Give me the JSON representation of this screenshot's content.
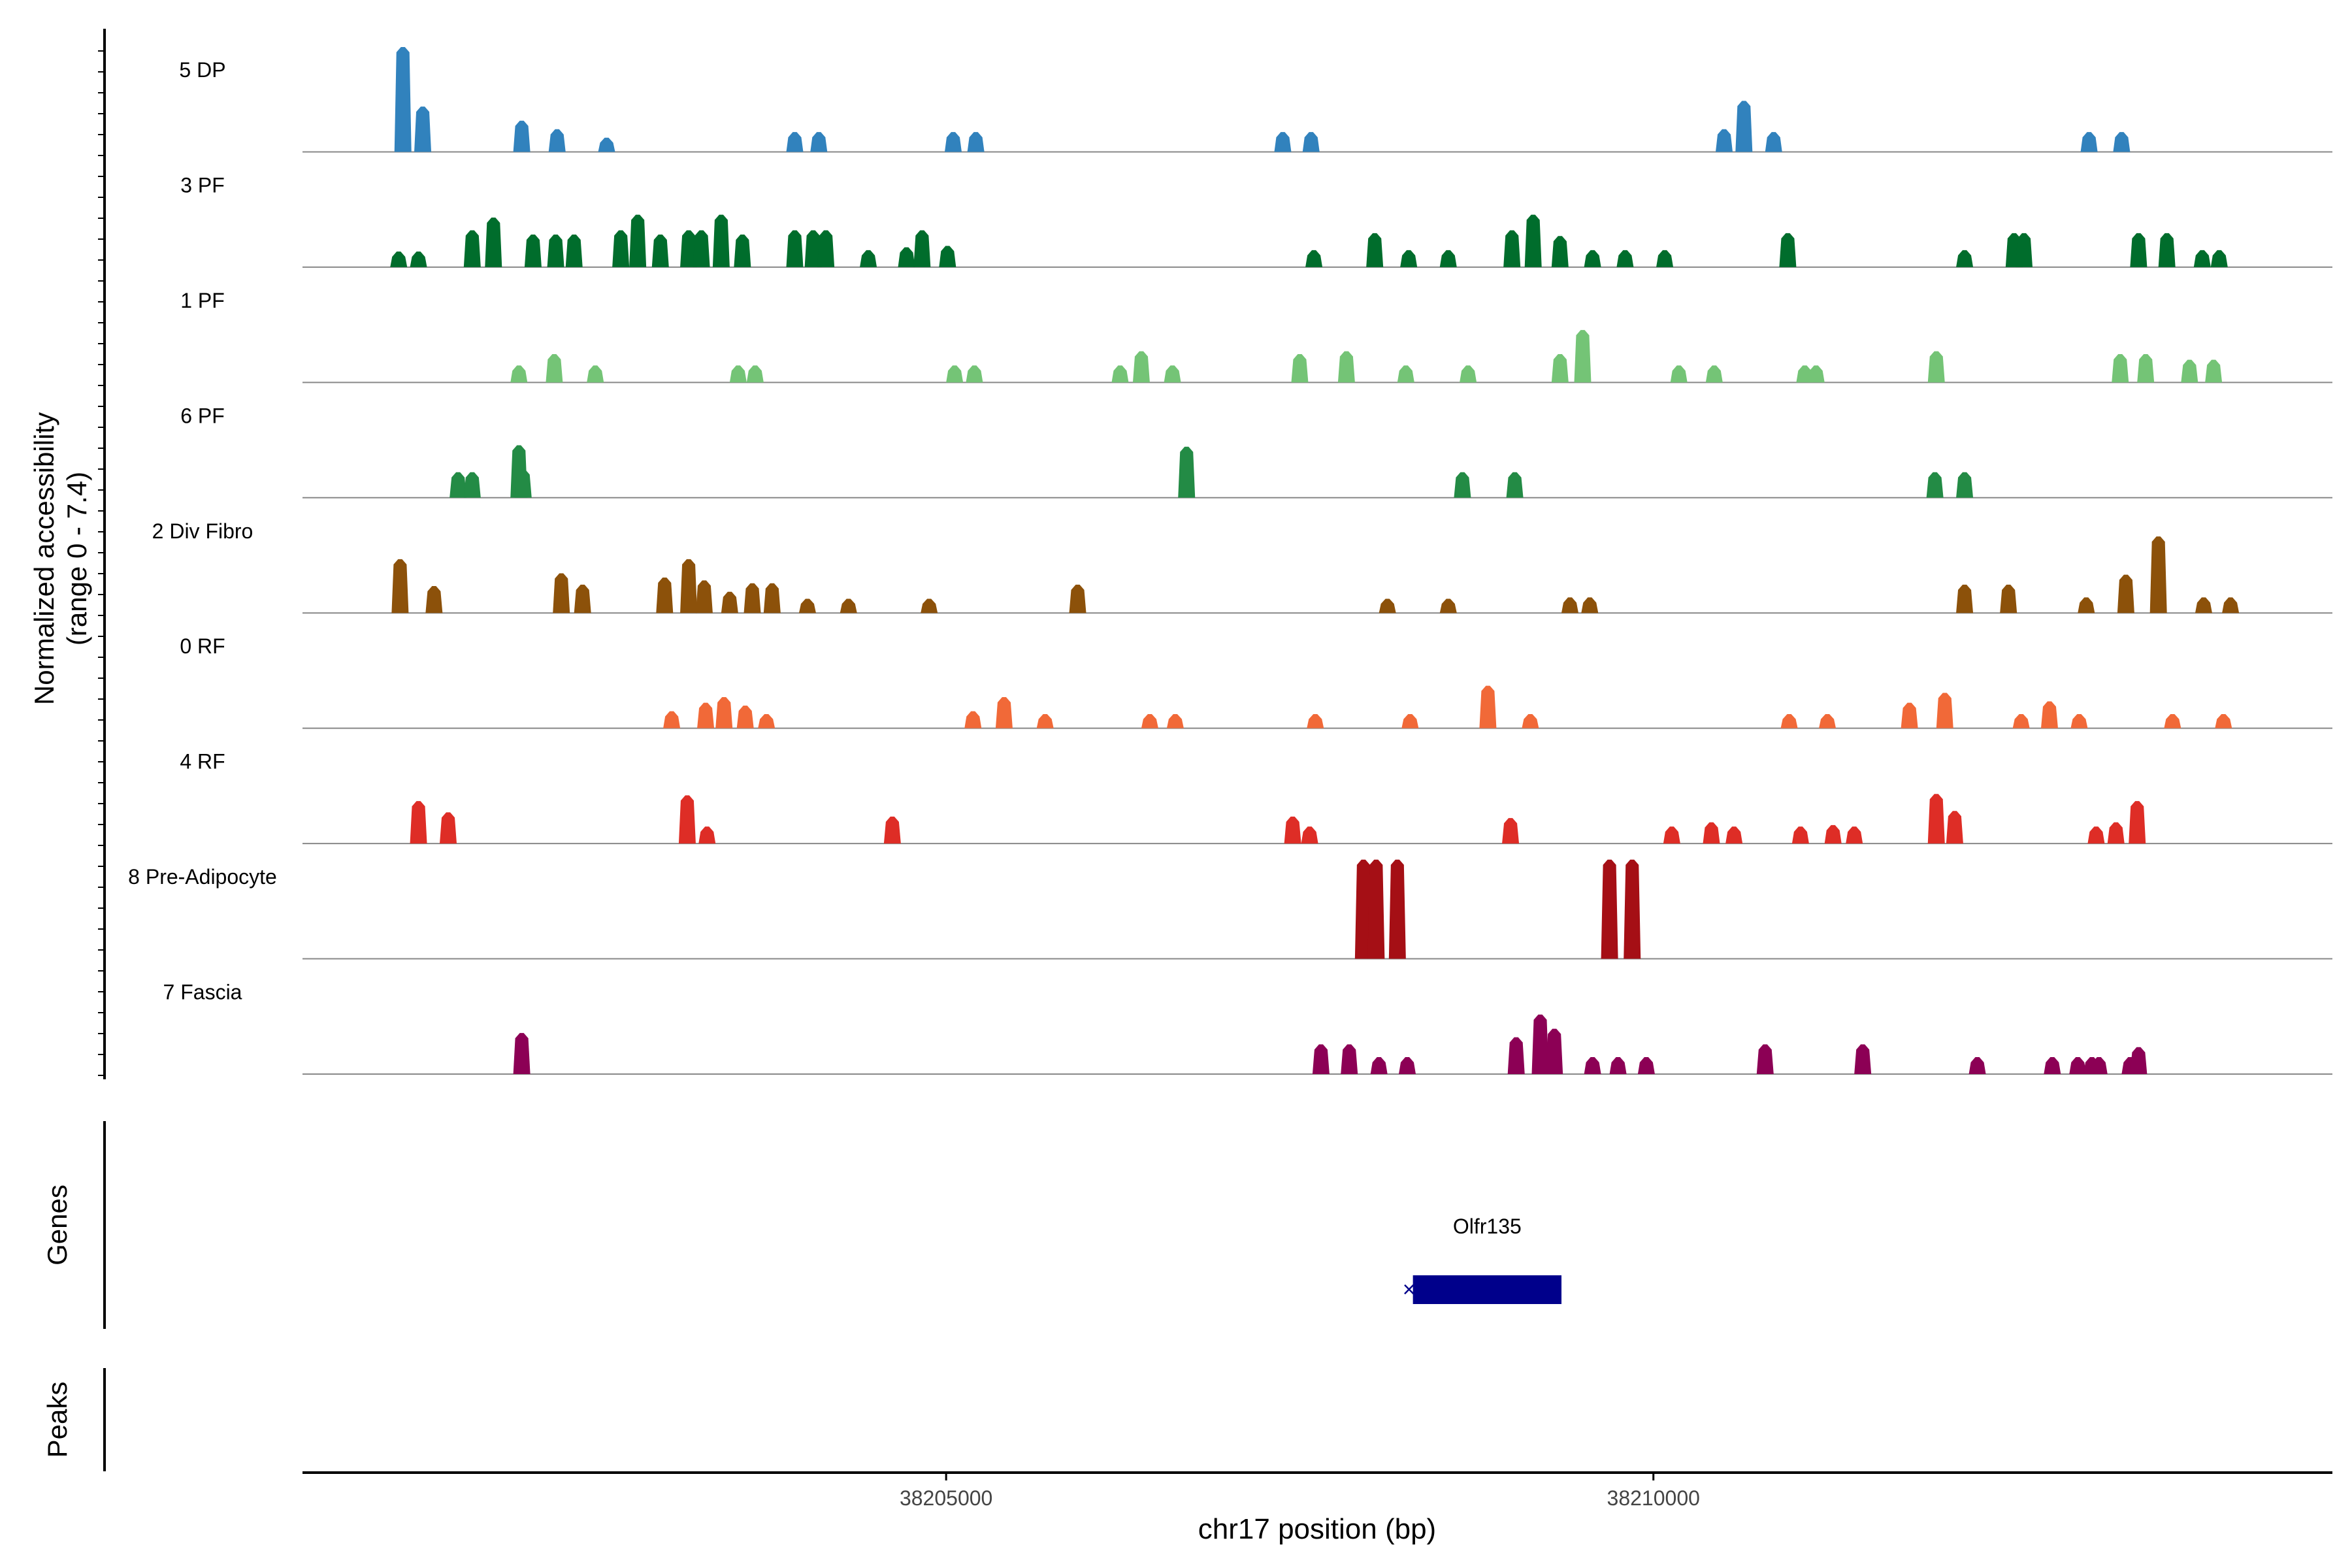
{
  "chart_data": {
    "type": "area",
    "title": "",
    "xlabel": "chr17 position (bp)",
    "ylabel_line1": "Normalized accessibility",
    "ylabel_line2": "(range 0 - 7.4)",
    "ylim": [
      0,
      7.4
    ],
    "xlim": [
      38200450,
      38214800
    ],
    "x_ticks": [
      38205000,
      38210000
    ],
    "x_tick_labels": [
      "38205000",
      "38210000"
    ],
    "series": [
      {
        "name": "5 DP",
        "color": "#3182bd",
        "peaks": [
          [
            38201160,
            7.4
          ],
          [
            38201300,
            3.2
          ],
          [
            38202000,
            2.2
          ],
          [
            38202250,
            1.6
          ],
          [
            38202600,
            1.0
          ],
          [
            38203930,
            1.4
          ],
          [
            38204100,
            1.4
          ],
          [
            38205050,
            1.4
          ],
          [
            38205210,
            1.4
          ],
          [
            38207380,
            1.4
          ],
          [
            38207580,
            1.4
          ],
          [
            38210500,
            1.6
          ],
          [
            38210640,
            3.6
          ],
          [
            38210850,
            1.4
          ],
          [
            38213080,
            1.4
          ],
          [
            38213310,
            1.4
          ]
        ]
      },
      {
        "name": "3 PF",
        "color": "#006d2c",
        "peaks": [
          [
            38201130,
            1.1
          ],
          [
            38201270,
            1.1
          ],
          [
            38201650,
            2.6
          ],
          [
            38201800,
            3.5
          ],
          [
            38202080,
            2.3
          ],
          [
            38202240,
            2.3
          ],
          [
            38202370,
            2.3
          ],
          [
            38202700,
            2.6
          ],
          [
            38202820,
            3.7
          ],
          [
            38202980,
            2.3
          ],
          [
            38203180,
            2.6
          ],
          [
            38203270,
            2.6
          ],
          [
            38203410,
            3.7
          ],
          [
            38203560,
            2.3
          ],
          [
            38203930,
            2.6
          ],
          [
            38204060,
            2.6
          ],
          [
            38204150,
            2.6
          ],
          [
            38204450,
            1.2
          ],
          [
            38204720,
            1.4
          ],
          [
            38204830,
            2.6
          ],
          [
            38205010,
            1.5
          ],
          [
            38207600,
            1.2
          ],
          [
            38208030,
            2.4
          ],
          [
            38208270,
            1.2
          ],
          [
            38208550,
            1.2
          ],
          [
            38209000,
            2.6
          ],
          [
            38209150,
            3.7
          ],
          [
            38209340,
            2.2
          ],
          [
            38209570,
            1.2
          ],
          [
            38209800,
            1.2
          ],
          [
            38210080,
            1.2
          ],
          [
            38210950,
            2.4
          ],
          [
            38212200,
            1.2
          ],
          [
            38212550,
            2.4
          ],
          [
            38212620,
            2.4
          ],
          [
            38213430,
            2.4
          ],
          [
            38213630,
            2.4
          ],
          [
            38213880,
            1.2
          ],
          [
            38214000,
            1.2
          ]
        ]
      },
      {
        "name": "1 PF",
        "color": "#74c476",
        "peaks": [
          [
            38201980,
            1.2
          ],
          [
            38202230,
            2.0
          ],
          [
            38202520,
            1.2
          ],
          [
            38203530,
            1.2
          ],
          [
            38203650,
            1.2
          ],
          [
            38205060,
            1.2
          ],
          [
            38205200,
            1.2
          ],
          [
            38206230,
            1.2
          ],
          [
            38206380,
            2.2
          ],
          [
            38206600,
            1.2
          ],
          [
            38207500,
            2.0
          ],
          [
            38207830,
            2.2
          ],
          [
            38208250,
            1.2
          ],
          [
            38208690,
            1.2
          ],
          [
            38209340,
            2.0
          ],
          [
            38209500,
            3.7
          ],
          [
            38210180,
            1.2
          ],
          [
            38210430,
            1.2
          ],
          [
            38211070,
            1.2
          ],
          [
            38211150,
            1.2
          ],
          [
            38212000,
            2.2
          ],
          [
            38213300,
            2.0
          ],
          [
            38213480,
            2.0
          ],
          [
            38213790,
            1.6
          ],
          [
            38213960,
            1.6
          ]
        ]
      },
      {
        "name": "6 PF",
        "color": "#238b45",
        "peaks": [
          [
            38201550,
            1.8
          ],
          [
            38201650,
            1.8
          ],
          [
            38201980,
            3.7
          ],
          [
            38202010,
            2.0
          ],
          [
            38206700,
            3.6
          ],
          [
            38208650,
            1.8
          ],
          [
            38209020,
            1.8
          ],
          [
            38211990,
            1.8
          ],
          [
            38212200,
            1.8
          ]
        ]
      },
      {
        "name": "2 Div Fibro",
        "color": "#8c510a",
        "peaks": [
          [
            38201140,
            3.8
          ],
          [
            38201380,
            1.9
          ],
          [
            38202280,
            2.8
          ],
          [
            38202430,
            2.0
          ],
          [
            38203010,
            2.5
          ],
          [
            38203180,
            3.8
          ],
          [
            38203290,
            2.3
          ],
          [
            38203470,
            1.5
          ],
          [
            38203630,
            2.1
          ],
          [
            38203770,
            2.1
          ],
          [
            38204020,
            1.0
          ],
          [
            38204310,
            1.0
          ],
          [
            38204880,
            1.0
          ],
          [
            38205930,
            2.0
          ],
          [
            38208120,
            1.0
          ],
          [
            38208550,
            1.0
          ],
          [
            38209410,
            1.1
          ],
          [
            38209550,
            1.1
          ],
          [
            38212200,
            2.0
          ],
          [
            38212510,
            2.0
          ],
          [
            38213060,
            1.1
          ],
          [
            38213340,
            2.7
          ],
          [
            38213570,
            5.4
          ],
          [
            38213890,
            1.1
          ],
          [
            38214080,
            1.1
          ]
        ]
      },
      {
        "name": "0 RF",
        "color": "#f16938",
        "peaks": [
          [
            38203060,
            1.2
          ],
          [
            38203300,
            1.8
          ],
          [
            38203430,
            2.2
          ],
          [
            38203580,
            1.6
          ],
          [
            38203730,
            1.0
          ],
          [
            38205190,
            1.2
          ],
          [
            38205410,
            2.2
          ],
          [
            38205700,
            1.0
          ],
          [
            38206440,
            1.0
          ],
          [
            38206620,
            1.0
          ],
          [
            38207610,
            1.0
          ],
          [
            38208280,
            1.0
          ],
          [
            38208830,
            3.0
          ],
          [
            38209130,
            1.0
          ],
          [
            38210960,
            1.0
          ],
          [
            38211230,
            1.0
          ],
          [
            38211810,
            1.8
          ],
          [
            38212060,
            2.5
          ],
          [
            38212600,
            1.0
          ],
          [
            38212800,
            1.9
          ],
          [
            38213010,
            1.0
          ],
          [
            38213670,
            1.0
          ],
          [
            38214030,
            1.0
          ]
        ]
      },
      {
        "name": "4 RF",
        "color": "#de2d26",
        "peaks": [
          [
            38201270,
            3.0
          ],
          [
            38201480,
            2.2
          ],
          [
            38203170,
            3.4
          ],
          [
            38203310,
            1.2
          ],
          [
            38204620,
            1.9
          ],
          [
            38207450,
            1.9
          ],
          [
            38207570,
            1.2
          ],
          [
            38208990,
            1.8
          ],
          [
            38210130,
            1.2
          ],
          [
            38210410,
            1.5
          ],
          [
            38210570,
            1.2
          ],
          [
            38211040,
            1.2
          ],
          [
            38211270,
            1.3
          ],
          [
            38211420,
            1.2
          ],
          [
            38212000,
            3.5
          ],
          [
            38212130,
            2.3
          ],
          [
            38213130,
            1.2
          ],
          [
            38213270,
            1.5
          ],
          [
            38213420,
            3.0
          ]
        ]
      },
      {
        "name": "8 Pre-Adipocyte",
        "color": "#a50f15",
        "peaks": [
          [
            38207950,
            7.0
          ],
          [
            38208040,
            7.0
          ],
          [
            38208190,
            7.0
          ],
          [
            38209690,
            7.0
          ],
          [
            38209850,
            7.0
          ]
        ]
      },
      {
        "name": "7 Fascia",
        "color": "#8c0055",
        "peaks": [
          [
            38202000,
            2.9
          ],
          [
            38207650,
            2.1
          ],
          [
            38207850,
            2.1
          ],
          [
            38208060,
            1.2
          ],
          [
            38208260,
            1.2
          ],
          [
            38209030,
            2.6
          ],
          [
            38209200,
            4.2
          ],
          [
            38209300,
            3.2
          ],
          [
            38209570,
            1.2
          ],
          [
            38209750,
            1.2
          ],
          [
            38209950,
            1.2
          ],
          [
            38210790,
            2.1
          ],
          [
            38211480,
            2.1
          ],
          [
            38212290,
            1.2
          ],
          [
            38212820,
            1.2
          ],
          [
            38213000,
            1.2
          ],
          [
            38213100,
            1.2
          ],
          [
            38213150,
            1.2
          ],
          [
            38213370,
            1.2
          ],
          [
            38213430,
            1.9
          ]
        ]
      }
    ],
    "genes_track_label": "Genes",
    "peaks_track_label": "Peaks",
    "genes": [
      {
        "name": "Olfr135",
        "start": 38208300,
        "end": 38209350,
        "strand": "-",
        "color": "#00008b"
      }
    ]
  }
}
